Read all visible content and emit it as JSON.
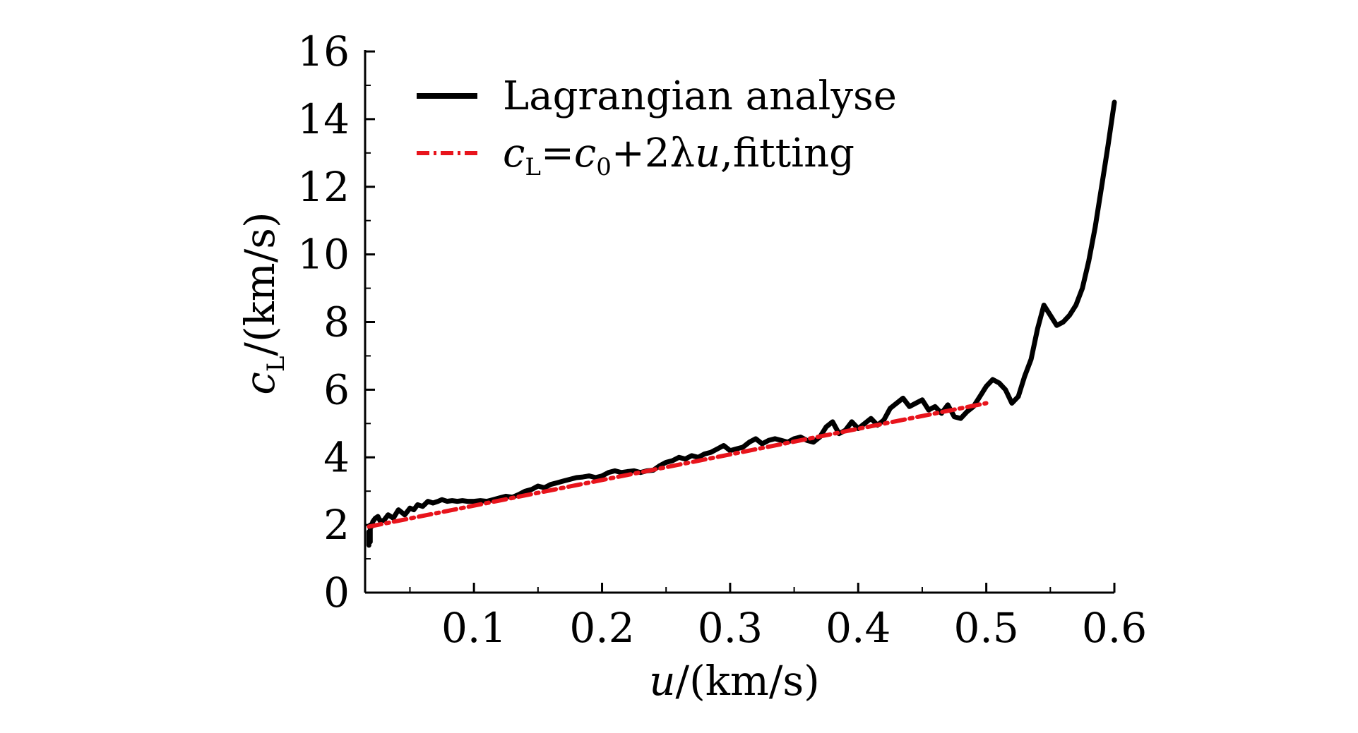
{
  "chart_data": {
    "type": "line",
    "title": "",
    "xlabel": {
      "var": "u",
      "unit": "/(km/s)"
    },
    "ylabel": {
      "var": "c",
      "sub": "L",
      "unit": "/(km/s)"
    },
    "xlim": [
      0.015,
      0.6
    ],
    "ylim": [
      0,
      16
    ],
    "x_ticks": [
      0.1,
      0.2,
      0.3,
      0.4,
      0.5,
      0.6
    ],
    "x_tick_labels": [
      "0.1",
      "0.2",
      "0.3",
      "0.4",
      "0.5",
      "0.6"
    ],
    "y_ticks": [
      0,
      2,
      4,
      6,
      8,
      10,
      12,
      14,
      16
    ],
    "y_tick_labels": [
      "0",
      "2",
      "4",
      "6",
      "8",
      "10",
      "12",
      "14",
      "16"
    ],
    "legend_position": "top-left",
    "series": [
      {
        "name": "Lagrangian analyse",
        "color": "#000000",
        "style": "solid",
        "x": [
          0.018,
          0.018,
          0.019,
          0.019,
          0.02,
          0.021,
          0.023,
          0.025,
          0.027,
          0.03,
          0.033,
          0.037,
          0.041,
          0.046,
          0.05,
          0.053,
          0.056,
          0.06,
          0.064,
          0.068,
          0.072,
          0.075,
          0.079,
          0.083,
          0.087,
          0.091,
          0.095,
          0.1,
          0.105,
          0.11,
          0.115,
          0.12,
          0.125,
          0.13,
          0.135,
          0.14,
          0.145,
          0.15,
          0.155,
          0.16,
          0.165,
          0.17,
          0.175,
          0.18,
          0.185,
          0.19,
          0.195,
          0.2,
          0.205,
          0.21,
          0.215,
          0.22,
          0.225,
          0.23,
          0.235,
          0.24,
          0.245,
          0.25,
          0.255,
          0.26,
          0.265,
          0.27,
          0.275,
          0.28,
          0.285,
          0.29,
          0.295,
          0.3,
          0.305,
          0.31,
          0.315,
          0.32,
          0.325,
          0.33,
          0.335,
          0.34,
          0.345,
          0.35,
          0.355,
          0.36,
          0.365,
          0.37,
          0.375,
          0.38,
          0.385,
          0.39,
          0.395,
          0.4,
          0.405,
          0.41,
          0.415,
          0.42,
          0.425,
          0.43,
          0.435,
          0.44,
          0.445,
          0.45,
          0.455,
          0.46,
          0.465,
          0.47,
          0.475,
          0.48,
          0.485,
          0.49,
          0.495,
          0.5,
          0.505,
          0.51,
          0.515,
          0.52,
          0.525,
          0.53,
          0.535,
          0.54,
          0.545,
          0.55,
          0.555,
          0.56,
          0.565,
          0.57,
          0.575,
          0.58,
          0.585,
          0.59,
          0.595,
          0.6
        ],
        "y": [
          1.4,
          1.8,
          1.5,
          2.0,
          1.95,
          2.1,
          2.2,
          2.25,
          2.1,
          2.15,
          2.3,
          2.2,
          2.45,
          2.3,
          2.5,
          2.45,
          2.6,
          2.55,
          2.7,
          2.65,
          2.7,
          2.75,
          2.7,
          2.72,
          2.7,
          2.72,
          2.7,
          2.7,
          2.72,
          2.7,
          2.75,
          2.8,
          2.85,
          2.82,
          2.9,
          3.0,
          3.05,
          3.15,
          3.1,
          3.2,
          3.25,
          3.3,
          3.35,
          3.4,
          3.42,
          3.45,
          3.4,
          3.45,
          3.55,
          3.6,
          3.55,
          3.58,
          3.6,
          3.55,
          3.6,
          3.62,
          3.75,
          3.85,
          3.9,
          4.0,
          3.95,
          4.05,
          4.0,
          4.1,
          4.15,
          4.25,
          4.35,
          4.2,
          4.25,
          4.3,
          4.45,
          4.55,
          4.4,
          4.5,
          4.55,
          4.5,
          4.45,
          4.55,
          4.6,
          4.5,
          4.45,
          4.6,
          4.9,
          5.05,
          4.7,
          4.8,
          5.05,
          4.85,
          5.0,
          5.15,
          4.95,
          5.1,
          5.45,
          5.6,
          5.75,
          5.5,
          5.6,
          5.7,
          5.4,
          5.5,
          5.3,
          5.55,
          5.2,
          5.15,
          5.35,
          5.5,
          5.8,
          6.1,
          6.3,
          6.2,
          6.0,
          5.6,
          5.8,
          6.4,
          6.9,
          7.8,
          8.5,
          8.2,
          7.9,
          8.0,
          8.2,
          8.5,
          9.0,
          9.8,
          10.8,
          12.0,
          13.2,
          14.5
        ]
      },
      {
        "name": "c_L=c_0+2λu,fitting",
        "color": "#e8141c",
        "style": "dash-dot",
        "x": [
          0.018,
          0.5
        ],
        "y": [
          1.95,
          5.6
        ]
      }
    ]
  },
  "legend": {
    "entry1": "Lagrangian analyse",
    "entry2": {
      "c": "c",
      "sub_L": "L",
      "eq": "=",
      "c0": "c",
      "sub_0": "0",
      "plus": "+2λ",
      "u": "u",
      "tail": ",fitting"
    }
  }
}
